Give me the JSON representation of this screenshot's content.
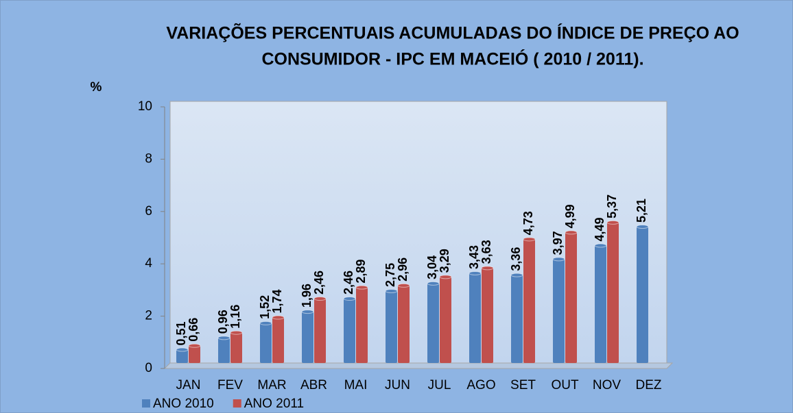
{
  "chart_data": {
    "type": "bar",
    "title": [
      "VARIAÇÕES PERCENTUAIS ACUMULADAS DO ÍNDICE DE PREÇO AO",
      "CONSUMIDOR - IPC EM MACEIÓ ( 2010 / 2011)."
    ],
    "y_label": "%",
    "categories": [
      "JAN",
      "FEV",
      "MAR",
      "ABR",
      "MAI",
      "JUN",
      "JUL",
      "AGO",
      "SET",
      "OUT",
      "NOV",
      "DEZ"
    ],
    "series": [
      {
        "name": "ANO 2010",
        "color": "#4f81bd",
        "values": [
          0.51,
          0.96,
          1.52,
          1.96,
          2.46,
          2.75,
          3.04,
          3.43,
          3.36,
          3.97,
          4.49,
          5.21
        ],
        "value_labels": [
          "0,51",
          "0,96",
          "1,52",
          "1,96",
          "2,46",
          "2,75",
          "3,04",
          "3,43",
          "3,36",
          "3,97",
          "4,49",
          "5,21"
        ]
      },
      {
        "name": "ANO 2011",
        "color": "#c0504d",
        "values": [
          0.66,
          1.16,
          1.74,
          2.46,
          2.89,
          2.96,
          3.29,
          3.63,
          4.73,
          4.99,
          5.37,
          null
        ],
        "value_labels": [
          "0,66",
          "1,16",
          "1,74",
          "2,46",
          "2,89",
          "2,96",
          "3,29",
          "3,63",
          "4,73",
          "4,99",
          "5,37",
          null
        ]
      }
    ],
    "ylim": [
      0,
      10
    ],
    "yticks": [
      0,
      2,
      4,
      6,
      8,
      10
    ],
    "grid": false,
    "legend": "bottom-left"
  }
}
